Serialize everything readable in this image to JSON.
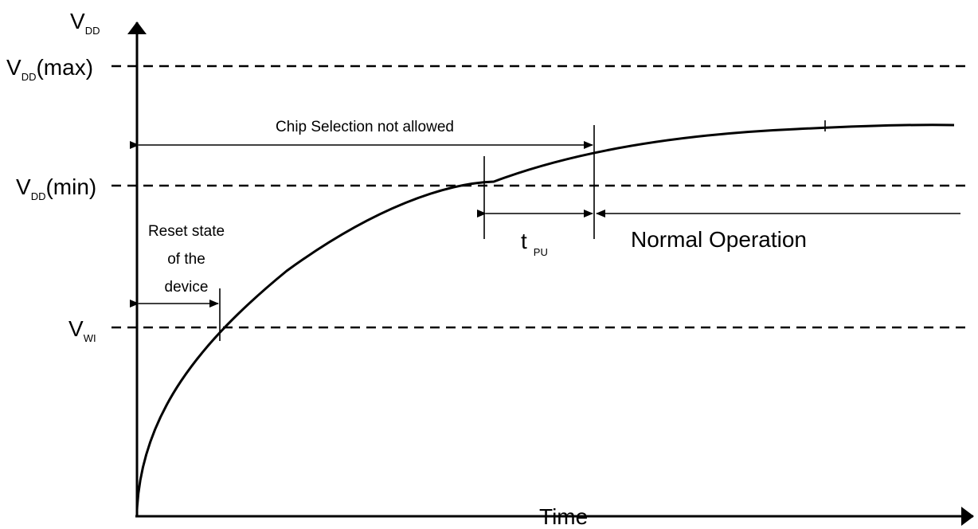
{
  "axes": {
    "y_main": "V",
    "y_sub": "DD",
    "x_label": "Time"
  },
  "levels": {
    "vdd_max": {
      "main": "V",
      "sub": "DD",
      "suffix": "(max)"
    },
    "vdd_min": {
      "main": "V",
      "sub": "DD",
      "suffix": "(min)"
    },
    "vwi": {
      "main": "V",
      "sub": "WI"
    }
  },
  "annotations": {
    "chip_selection": "Chip Selection not allowed",
    "reset_line1": "Reset state",
    "reset_line2": "of the",
    "reset_line3": "device",
    "tpu_main": "t",
    "tpu_sub": "PU",
    "normal_operation": "Normal Operation"
  }
}
